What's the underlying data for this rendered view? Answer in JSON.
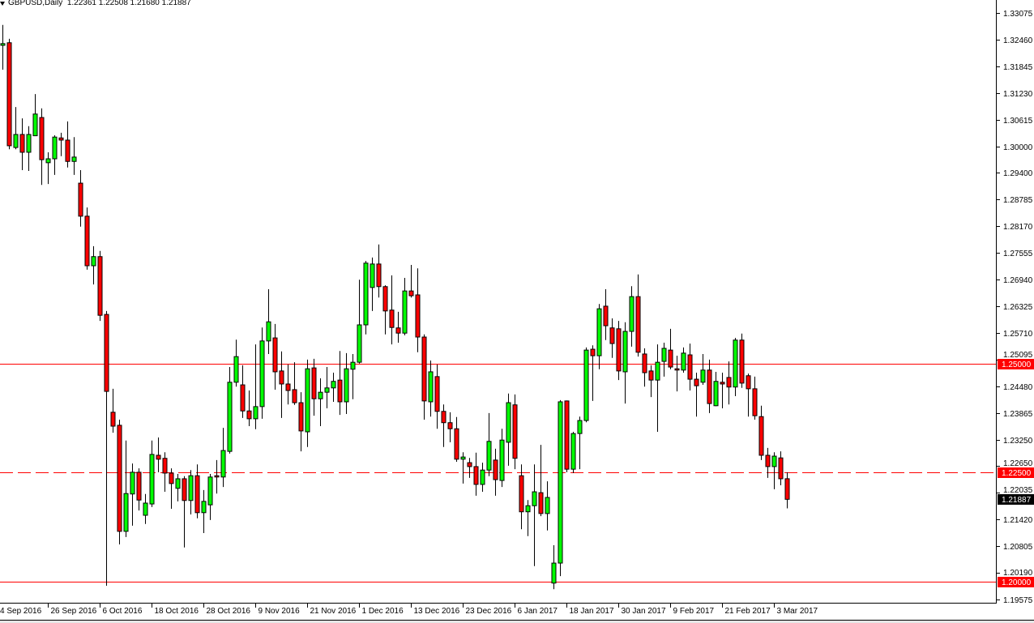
{
  "header": {
    "symbol_timeframe": "GBPUSD,Daily",
    "ohlc_readout": "1.22361 1.22508 1.21680 1.21887",
    "menu_icon": "triangle-down-icon"
  },
  "colors": {
    "bull_body": "#00ff00",
    "bear_body": "#ff0000",
    "outline": "#000000",
    "level_line": "#ff0000",
    "price_badge": "#000000"
  },
  "chart_data": {
    "type": "candlestick",
    "title": "GBPUSD,Daily",
    "ylim": [
      1.19545,
      1.33373
    ],
    "grid": false,
    "y_ticks": [
      "1.33075",
      "1.32460",
      "1.31845",
      "1.31230",
      "1.30615",
      "1.30000",
      "1.29400",
      "1.28785",
      "1.28170",
      "1.27555",
      "1.26940",
      "1.26325",
      "1.25710",
      "1.25095",
      "1.24480",
      "1.23865",
      "1.23250",
      "1.22650",
      "1.22035",
      "1.21420",
      "1.20805",
      "1.20190",
      "1.19575"
    ],
    "x_ticks": [
      "4 Sep 2016",
      "26 Sep 2016",
      "6 Oct 2016",
      "18 Oct 2016",
      "28 Oct 2016",
      "9 Nov 2016",
      "21 Nov 2016",
      "1 Dec 2016",
      "13 Dec 2016",
      "23 Dec 2016",
      "6 Jan 2017",
      "18 Jan 2017",
      "30 Jan 2017",
      "9 Feb 2017",
      "21 Feb 2017",
      "3 Mar 2017"
    ],
    "ohlc_fields": [
      "open",
      "high",
      "low",
      "close"
    ],
    "ohlc": [
      [
        1.3233,
        1.328,
        1.3177,
        1.3237
      ],
      [
        1.3239,
        1.3248,
        1.2994,
        1.3002
      ],
      [
        1.2998,
        1.3091,
        1.2994,
        1.3028
      ],
      [
        1.3028,
        1.3065,
        1.2946,
        1.2987
      ],
      [
        1.2987,
        1.3047,
        1.2944,
        1.3028
      ],
      [
        1.3025,
        1.3121,
        1.3025,
        1.3075
      ],
      [
        1.3067,
        1.3088,
        1.2912,
        1.297
      ],
      [
        1.2963,
        1.2987,
        1.2914,
        1.2972
      ],
      [
        1.2972,
        1.3026,
        1.2935,
        1.3022
      ],
      [
        1.302,
        1.3032,
        1.2978,
        1.3015
      ],
      [
        1.3015,
        1.3058,
        1.2952,
        1.2966
      ],
      [
        1.2966,
        1.3022,
        1.2935,
        1.2976
      ],
      [
        1.2916,
        1.2946,
        1.2816,
        1.284
      ],
      [
        1.284,
        1.286,
        1.2717,
        1.2726
      ],
      [
        1.2726,
        1.2771,
        1.2683,
        1.2747
      ],
      [
        1.2747,
        1.276,
        1.2599,
        1.2612
      ],
      [
        1.2614,
        1.2622,
        1.199,
        1.2437
      ],
      [
        1.2389,
        1.2443,
        1.2342,
        1.2357
      ],
      [
        1.2359,
        1.2372,
        1.2085,
        1.2115
      ],
      [
        1.2115,
        1.2324,
        1.2102,
        1.2202
      ],
      [
        1.2201,
        1.2271,
        1.2128,
        1.2251
      ],
      [
        1.2251,
        1.226,
        1.2163,
        1.2187
      ],
      [
        1.2152,
        1.2201,
        1.2132,
        1.218
      ],
      [
        1.2178,
        1.2324,
        1.2171,
        1.2292
      ],
      [
        1.229,
        1.2331,
        1.2251,
        1.2281
      ],
      [
        1.2283,
        1.2297,
        1.2206,
        1.2249
      ],
      [
        1.2249,
        1.226,
        1.2167,
        1.2225
      ],
      [
        1.2214,
        1.2247,
        1.2184,
        1.2236
      ],
      [
        1.2236,
        1.2242,
        1.2078,
        1.2186
      ],
      [
        1.2186,
        1.2256,
        1.2154,
        1.2243
      ],
      [
        1.2243,
        1.2269,
        1.2145,
        1.2158
      ],
      [
        1.2158,
        1.221,
        1.2111,
        1.2184
      ],
      [
        1.2176,
        1.2247,
        1.2141,
        1.224
      ],
      [
        1.2243,
        1.2279,
        1.2202,
        1.224
      ],
      [
        1.224,
        1.2353,
        1.2217,
        1.2301
      ],
      [
        1.2299,
        1.2493,
        1.2294,
        1.2458
      ],
      [
        1.2458,
        1.2556,
        1.2448,
        1.2517
      ],
      [
        1.2452,
        1.2497,
        1.2376,
        1.2392
      ],
      [
        1.2392,
        1.2439,
        1.2357,
        1.2374
      ],
      [
        1.2374,
        1.2545,
        1.235,
        1.2402
      ],
      [
        1.2402,
        1.2584,
        1.2374,
        1.2553
      ],
      [
        1.2553,
        1.2672,
        1.2523,
        1.2597
      ],
      [
        1.256,
        1.2592,
        1.2441,
        1.2482
      ],
      [
        1.2484,
        1.2529,
        1.2376,
        1.2454
      ],
      [
        1.2454,
        1.2499,
        1.2407,
        1.2439
      ],
      [
        1.2441,
        1.2504,
        1.2406,
        1.2411
      ],
      [
        1.2411,
        1.2435,
        1.2299,
        1.2346
      ],
      [
        1.2344,
        1.251,
        1.2309,
        1.2489
      ],
      [
        1.2491,
        1.2512,
        1.2381,
        1.242
      ],
      [
        1.242,
        1.2467,
        1.2357,
        1.2435
      ],
      [
        1.2435,
        1.2493,
        1.2398,
        1.2445
      ],
      [
        1.2445,
        1.248,
        1.2413,
        1.246
      ],
      [
        1.2463,
        1.253,
        1.2383,
        1.2413
      ],
      [
        1.2413,
        1.2525,
        1.2385,
        1.2489
      ],
      [
        1.2488,
        1.2523,
        1.2419,
        1.2504
      ],
      [
        1.2504,
        1.2694,
        1.2501,
        1.259
      ],
      [
        1.259,
        1.2737,
        1.2568,
        1.2732
      ],
      [
        1.2676,
        1.2745,
        1.2622,
        1.273
      ],
      [
        1.273,
        1.2775,
        1.2653,
        1.2678
      ],
      [
        1.2678,
        1.2681,
        1.2568,
        1.2622
      ],
      [
        1.2624,
        1.2704,
        1.2545,
        1.2584
      ],
      [
        1.2583,
        1.262,
        1.2549,
        1.2571
      ],
      [
        1.2571,
        1.2698,
        1.2566,
        1.2668
      ],
      [
        1.2668,
        1.2728,
        1.2653,
        1.2657
      ],
      [
        1.2659,
        1.272,
        1.2527,
        1.2562
      ],
      [
        1.2562,
        1.2568,
        1.2372,
        1.2415
      ],
      [
        1.2413,
        1.2508,
        1.2379,
        1.2482
      ],
      [
        1.2471,
        1.2499,
        1.2351,
        1.2391
      ],
      [
        1.2391,
        1.2407,
        1.2309,
        1.2365
      ],
      [
        1.2365,
        1.2389,
        1.232,
        1.2351
      ],
      [
        1.2351,
        1.2378,
        1.2275,
        1.2281
      ],
      [
        1.2281,
        1.2297,
        1.2225,
        1.2286
      ],
      [
        1.2273,
        1.2284,
        1.2238,
        1.2264
      ],
      [
        1.2264,
        1.2296,
        1.2197,
        1.2223
      ],
      [
        1.2223,
        1.2273,
        1.2206,
        1.2256
      ],
      [
        1.2256,
        1.2387,
        1.2242,
        1.2322
      ],
      [
        1.2279,
        1.2305,
        1.2197,
        1.2234
      ],
      [
        1.2232,
        1.2351,
        1.2217,
        1.2325
      ],
      [
        1.232,
        1.2432,
        1.2266,
        1.2411
      ],
      [
        1.2406,
        1.243,
        1.2258,
        1.2283
      ],
      [
        1.2243,
        1.2269,
        1.212,
        1.216
      ],
      [
        1.216,
        1.2187,
        1.2104,
        1.2174
      ],
      [
        1.2174,
        1.2269,
        1.2035,
        1.2206
      ],
      [
        1.2204,
        1.2314,
        1.215,
        1.2156
      ],
      [
        1.2156,
        1.223,
        1.2117,
        1.2193
      ],
      [
        1.1996,
        1.2083,
        1.1982,
        1.2042
      ],
      [
        1.2042,
        1.2417,
        1.2012,
        1.2413
      ],
      [
        1.2415,
        1.2416,
        1.2251,
        1.2258
      ],
      [
        1.2258,
        1.2344,
        1.2249,
        1.234
      ],
      [
        1.234,
        1.2379,
        1.2258,
        1.237
      ],
      [
        1.237,
        1.2538,
        1.2366,
        1.2532
      ],
      [
        1.2534,
        1.2543,
        1.2415,
        1.2519
      ],
      [
        1.2519,
        1.2638,
        1.2488,
        1.2627
      ],
      [
        1.2633,
        1.2672,
        1.2555,
        1.2588
      ],
      [
        1.2583,
        1.2605,
        1.2514,
        1.2547
      ],
      [
        1.2581,
        1.2599,
        1.2463,
        1.2484
      ],
      [
        1.2482,
        1.2596,
        1.2409,
        1.2575
      ],
      [
        1.2575,
        1.2679,
        1.254,
        1.2655
      ],
      [
        1.2655,
        1.2706,
        1.2517,
        1.2527
      ],
      [
        1.2523,
        1.2536,
        1.2448,
        1.248
      ],
      [
        1.2484,
        1.2497,
        1.2424,
        1.2463
      ],
      [
        1.2463,
        1.2545,
        1.2344,
        1.2504
      ],
      [
        1.2506,
        1.2549,
        1.2471,
        1.2536
      ],
      [
        1.2532,
        1.2581,
        1.2488,
        1.2493
      ],
      [
        1.2489,
        1.2519,
        1.2437,
        1.2486
      ],
      [
        1.2486,
        1.2538,
        1.248,
        1.2525
      ],
      [
        1.2521,
        1.2547,
        1.2439,
        1.2465
      ],
      [
        1.2465,
        1.248,
        1.2379,
        1.245
      ],
      [
        1.2458,
        1.2523,
        1.2452,
        1.2486
      ],
      [
        1.2486,
        1.251,
        1.2387,
        1.2409
      ],
      [
        1.2404,
        1.2482,
        1.2403,
        1.246
      ],
      [
        1.2458,
        1.248,
        1.2398,
        1.2454
      ],
      [
        1.2469,
        1.2506,
        1.2407,
        1.2447
      ],
      [
        1.2447,
        1.256,
        1.2426,
        1.2555
      ],
      [
        1.2555,
        1.257,
        1.2445,
        1.2456
      ],
      [
        1.2473,
        1.2478,
        1.2379,
        1.2443
      ],
      [
        1.2443,
        1.2471,
        1.2372,
        1.2381
      ],
      [
        1.2379,
        1.2404,
        1.2279,
        1.229
      ],
      [
        1.229,
        1.2307,
        1.2238,
        1.2264
      ],
      [
        1.2264,
        1.2297,
        1.2212,
        1.2288
      ],
      [
        1.2284,
        1.2299,
        1.2221,
        1.2236
      ],
      [
        1.22361,
        1.22508,
        1.2168,
        1.21887
      ]
    ],
    "levels": [
      {
        "price": 1.25,
        "label": "1.25000",
        "style": "solid"
      },
      {
        "price": 1.225,
        "label": "1.22500",
        "style": "dashed"
      },
      {
        "price": 1.2,
        "label": "1.20000",
        "style": "solid"
      }
    ],
    "current_price": {
      "price": 1.21887,
      "label": "1.21887"
    }
  }
}
